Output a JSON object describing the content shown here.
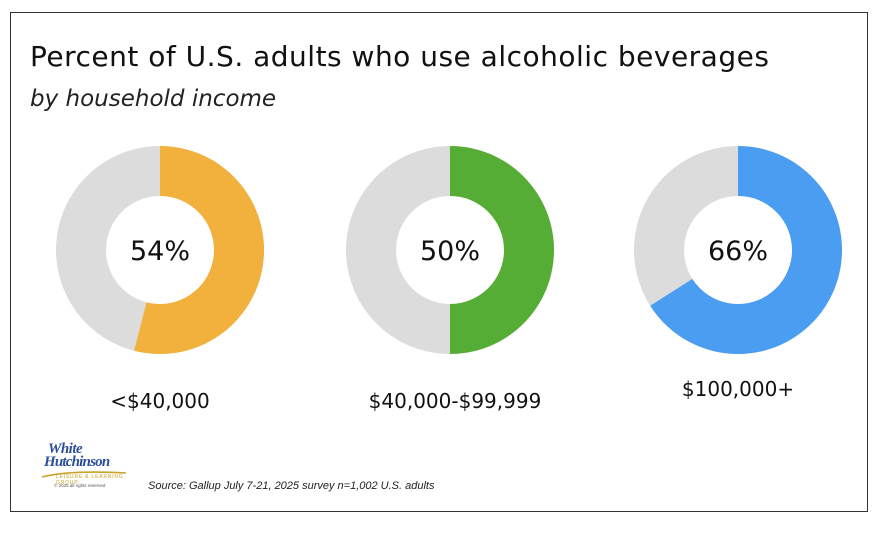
{
  "title": "Percent of U.S. adults who use alcoholic beverages",
  "subtitle": "by household income",
  "source": "Source: Gallup July 7-21, 2025 survey n=1,002 U.S. adults",
  "logo": {
    "line1": "White",
    "line2": "Hutchinson",
    "tagline": "LEISURE & LEARNING GROUP",
    "copyright": "© 2025 all rights reserved"
  },
  "colors": {
    "remainder": "#dcdcdc",
    "center": "#ffffff"
  },
  "chart_data": {
    "type": "pie",
    "categories": [
      "<$40,000",
      "$40,000-$99,999",
      "$100,000+"
    ],
    "values": [
      54,
      50,
      66
    ],
    "value_labels": [
      "54%",
      "50%",
      "66%"
    ],
    "colors": [
      "#f2b03c",
      "#56ad35",
      "#4a9df0"
    ],
    "unit": "%"
  }
}
